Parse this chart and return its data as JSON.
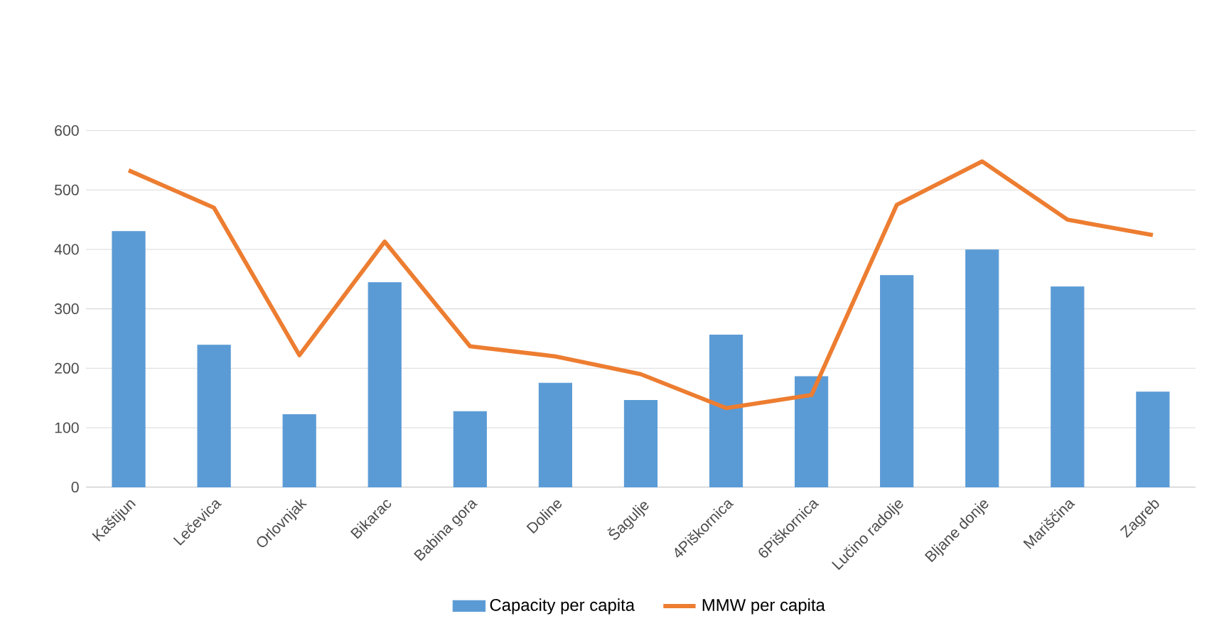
{
  "chart_data": {
    "type": "bar",
    "categories": [
      "Kaštijun",
      "Lečevica",
      "Orlovnjak",
      "Bikarac",
      "Babina gora",
      "Doline",
      "Šagulje",
      "4Piškornica",
      "6Piškornica",
      "Lučino radolje",
      "Bljane donje",
      "Mariščina",
      "Zagreb"
    ],
    "series": [
      {
        "name": "Capacity per capita",
        "color": "#5b9bd5",
        "values": [
          430,
          239,
          122,
          344,
          127,
          175,
          146,
          256,
          186,
          356,
          399,
          337,
          160
        ]
      },
      {
        "name": "MMW per capita",
        "type": "line",
        "color": "#ed7d31",
        "values": [
          533,
          470,
          222,
          413,
          237,
          220,
          190,
          133,
          155,
          475,
          548,
          450,
          424
        ]
      }
    ],
    "ylim": [
      0,
      600
    ],
    "yticks": [
      0,
      100,
      200,
      300,
      400,
      500,
      600
    ],
    "grid": "y",
    "legend": "bottom"
  }
}
